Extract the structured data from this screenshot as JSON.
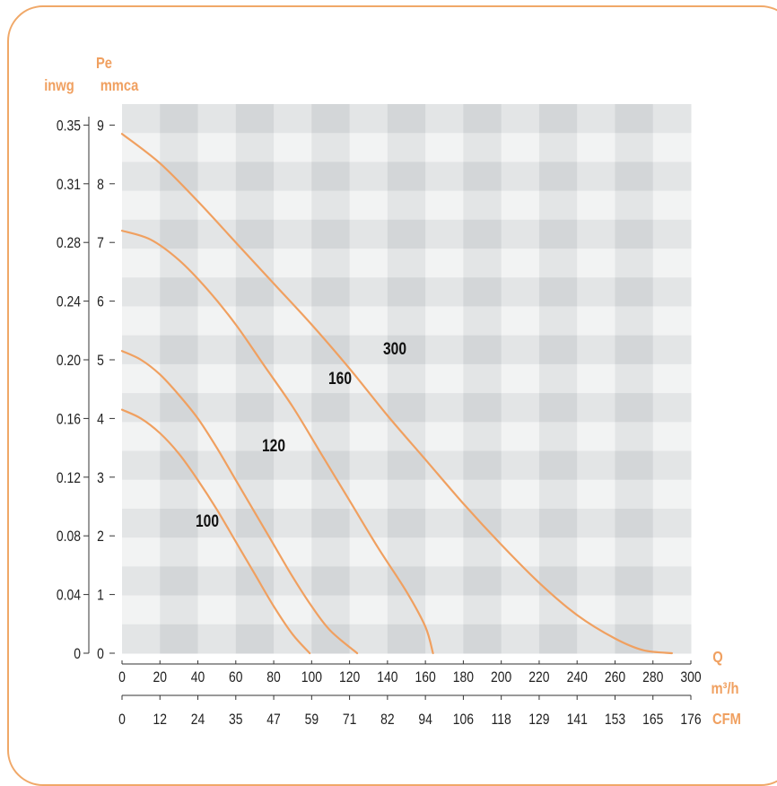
{
  "chart_data": {
    "type": "line",
    "left_axis_labels": {
      "pe": "Pe",
      "mmca": "mmca",
      "inwg": "inwg"
    },
    "right_axis_labels": {
      "q": "Q",
      "m3h": "m³/h",
      "cfm": "CFM"
    },
    "x_ticks_m3h": [
      "0",
      "20",
      "40",
      "60",
      "80",
      "100",
      "120",
      "140",
      "160",
      "180",
      "200",
      "220",
      "240",
      "260",
      "280",
      "300"
    ],
    "x_ticks_cfm": [
      "0",
      "12",
      "24",
      "35",
      "47",
      "59",
      "71",
      "82",
      "94",
      "106",
      "118",
      "129",
      "141",
      "153",
      "165",
      "176"
    ],
    "y_ticks_mmca": [
      "0",
      "1",
      "2",
      "3",
      "4",
      "5",
      "6",
      "7",
      "8",
      "9"
    ],
    "y_ticks_inwg": [
      "0",
      "0.04",
      "0.08",
      "0.12",
      "0.16",
      "0.20",
      "0.24",
      "0.28",
      "0.31",
      "0.35"
    ],
    "xlim": [
      0,
      300
    ],
    "ylim": [
      0,
      9.5
    ],
    "grid": "alternating checkered bands",
    "series": [
      {
        "name": "100",
        "points": [
          [
            0,
            4.15
          ],
          [
            10,
            4.0
          ],
          [
            20,
            3.75
          ],
          [
            30,
            3.4
          ],
          [
            40,
            2.95
          ],
          [
            50,
            2.45
          ],
          [
            60,
            1.9
          ],
          [
            70,
            1.35
          ],
          [
            80,
            0.8
          ],
          [
            90,
            0.32
          ],
          [
            99,
            0
          ]
        ]
      },
      {
        "name": "120",
        "points": [
          [
            0,
            5.15
          ],
          [
            10,
            5.0
          ],
          [
            20,
            4.75
          ],
          [
            30,
            4.4
          ],
          [
            40,
            4.0
          ],
          [
            50,
            3.5
          ],
          [
            60,
            2.95
          ],
          [
            70,
            2.4
          ],
          [
            80,
            1.85
          ],
          [
            90,
            1.3
          ],
          [
            100,
            0.8
          ],
          [
            110,
            0.38
          ],
          [
            124,
            0
          ]
        ]
      },
      {
        "name": "160",
        "points": [
          [
            0,
            7.2
          ],
          [
            15,
            7.05
          ],
          [
            30,
            6.7
          ],
          [
            45,
            6.2
          ],
          [
            60,
            5.6
          ],
          [
            75,
            4.9
          ],
          [
            90,
            4.2
          ],
          [
            105,
            3.4
          ],
          [
            120,
            2.6
          ],
          [
            135,
            1.8
          ],
          [
            150,
            1.05
          ],
          [
            160,
            0.45
          ],
          [
            164,
            0
          ]
        ]
      },
      {
        "name": "300",
        "points": [
          [
            0,
            8.85
          ],
          [
            20,
            8.35
          ],
          [
            40,
            7.7
          ],
          [
            60,
            7.0
          ],
          [
            80,
            6.3
          ],
          [
            100,
            5.6
          ],
          [
            120,
            4.85
          ],
          [
            140,
            4.05
          ],
          [
            160,
            3.3
          ],
          [
            180,
            2.55
          ],
          [
            200,
            1.85
          ],
          [
            220,
            1.2
          ],
          [
            240,
            0.65
          ],
          [
            260,
            0.25
          ],
          [
            275,
            0.05
          ],
          [
            290,
            0
          ]
        ]
      }
    ],
    "series_color": "#f0a060",
    "label_color": "#f0a060",
    "grid_light": "#f2f3f3",
    "grid_mid": "#e3e5e6",
    "grid_dark": "#d3d6d8"
  }
}
